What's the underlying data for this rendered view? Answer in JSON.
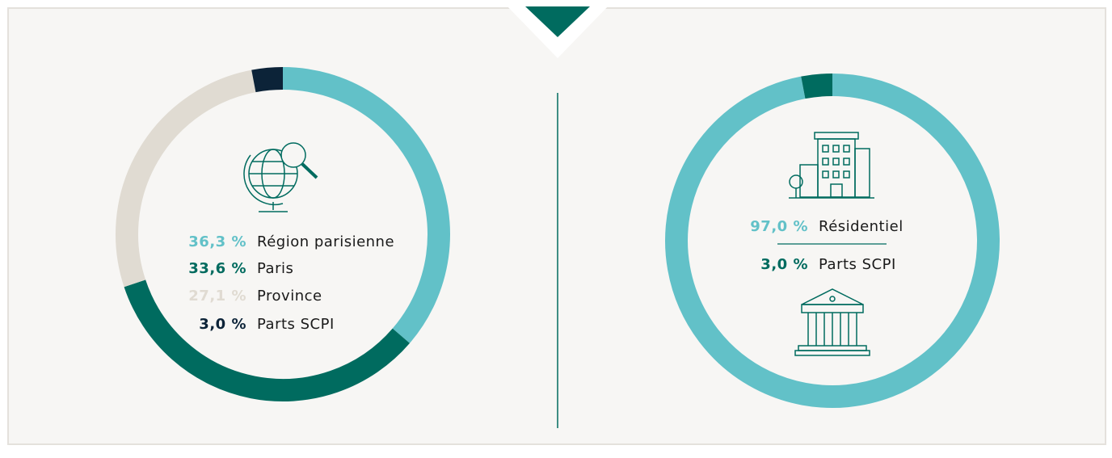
{
  "chart_data": [
    {
      "type": "pie",
      "categories": [
        "Région parisienne",
        "Paris",
        "Province",
        "Parts SCPI"
      ],
      "values": [
        36.3,
        33.6,
        27.1,
        3.0
      ],
      "value_labels": [
        "36,3 %",
        "33,6 %",
        "27,1 %",
        "3,0 %"
      ],
      "colors": [
        "#62c1c8",
        "#006b5f",
        "#e0dbd2",
        "#0c2338"
      ]
    },
    {
      "type": "pie",
      "categories": [
        "Résidentiel",
        "Parts SCPI"
      ],
      "values": [
        97.0,
        3.0
      ],
      "value_labels": [
        "97,0 %",
        "3,0 %"
      ],
      "colors": [
        "#62c1c8",
        "#006b5f"
      ]
    }
  ]
}
